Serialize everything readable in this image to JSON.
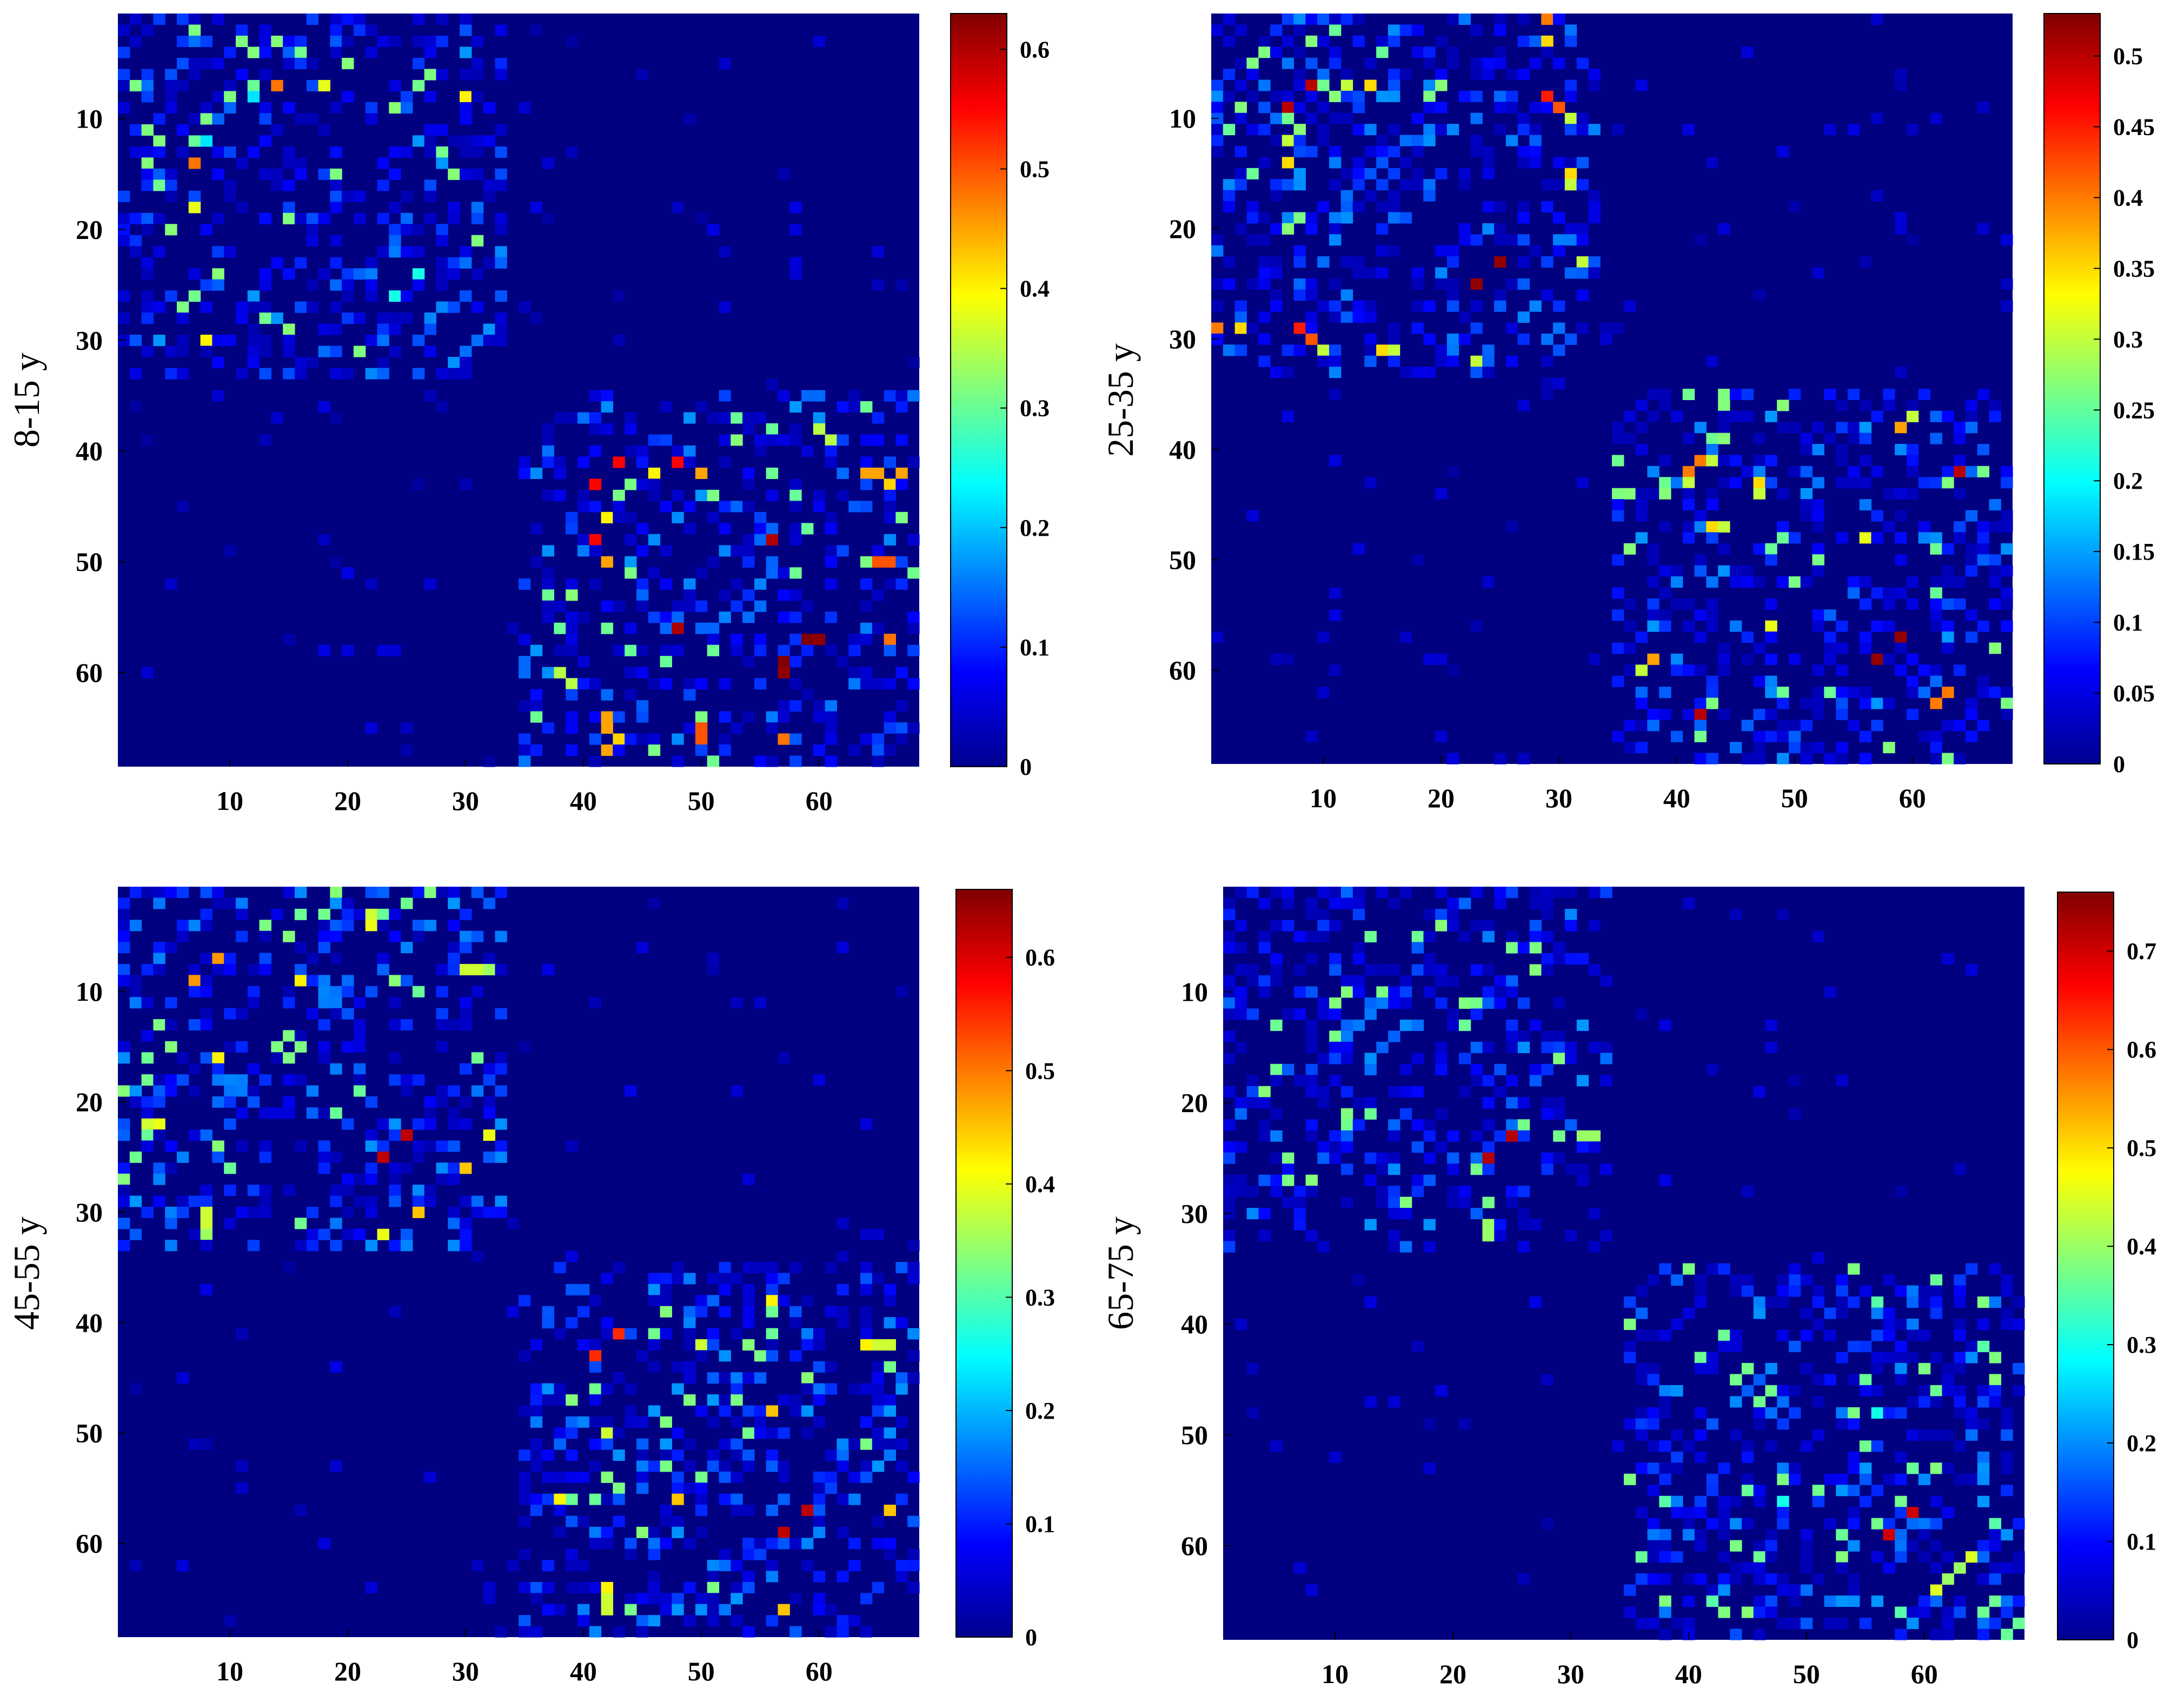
{
  "chart_data": [
    {
      "type": "heatmap",
      "ylabel": "8-15 y",
      "size": 68,
      "x_ticks": [
        10,
        20,
        30,
        40,
        50,
        60
      ],
      "y_ticks": [
        10,
        20,
        30,
        40,
        50,
        60
      ],
      "colormap": "jet",
      "clim": [
        0,
        0.63
      ],
      "colorbar_ticks": [
        "0",
        "0.1",
        "0.2",
        "0.3",
        "0.4",
        "0.5",
        "0.6"
      ],
      "seed": 11,
      "hot_cells": [
        [
          7,
          14,
          0.45
        ],
        [
          7,
          18,
          0.35
        ],
        [
          8,
          30,
          0.4
        ],
        [
          14,
          7,
          0.48
        ],
        [
          18,
          7,
          0.38
        ],
        [
          30,
          8,
          0.4
        ],
        [
          26,
          24,
          0.25
        ],
        [
          12,
          8,
          0.22
        ],
        [
          7,
          12,
          0.3
        ],
        [
          41,
          43,
          0.55
        ],
        [
          41,
          48,
          0.6
        ],
        [
          43,
          41,
          0.55
        ],
        [
          42,
          46,
          0.38
        ],
        [
          46,
          42,
          0.4
        ],
        [
          48,
          56,
          0.62
        ],
        [
          48,
          41,
          0.55
        ],
        [
          50,
          42,
          0.45
        ],
        [
          50,
          66,
          0.5
        ],
        [
          56,
          48,
          0.6
        ],
        [
          57,
          60,
          0.62
        ],
        [
          57,
          66,
          0.45
        ],
        [
          59,
          57,
          0.63
        ],
        [
          65,
          50,
          0.5
        ],
        [
          64,
          42,
          0.45
        ],
        [
          66,
          43,
          0.42
        ],
        [
          66,
          57,
          0.48
        ],
        [
          42,
          65,
          0.45
        ],
        [
          42,
          67,
          0.45
        ],
        [
          38,
          60,
          0.4
        ],
        [
          60,
          38,
          0.35
        ],
        [
          56,
          38,
          0.3
        ],
        [
          61,
          39,
          0.35
        ],
        [
          58,
          44,
          0.35
        ],
        [
          44,
          58,
          0.3
        ]
      ]
    },
    {
      "type": "heatmap",
      "ylabel": "25-35 y",
      "size": 68,
      "x_ticks": [
        10,
        20,
        30,
        40,
        50,
        60
      ],
      "y_ticks": [
        10,
        20,
        30,
        40,
        50,
        60
      ],
      "colormap": "jet",
      "clim": [
        0,
        0.53
      ],
      "colorbar_ticks": [
        "0",
        "0.05",
        "0.1",
        "0.15",
        "0.2",
        "0.25",
        "0.3",
        "0.35",
        "0.4",
        "0.45",
        "0.5"
      ],
      "seed": 23,
      "hot_cells": [
        [
          9,
          7,
          0.45
        ],
        [
          7,
          9,
          0.5
        ],
        [
          8,
          29,
          0.45
        ],
        [
          3,
          29,
          0.35
        ],
        [
          12,
          7,
          0.3
        ],
        [
          14,
          7,
          0.35
        ],
        [
          29,
          1,
          0.4
        ],
        [
          30,
          9,
          0.42
        ],
        [
          31,
          15,
          0.35
        ],
        [
          25,
          23,
          0.5
        ],
        [
          23,
          25,
          0.52
        ],
        [
          16,
          31,
          0.3
        ],
        [
          10,
          31,
          0.3
        ],
        [
          32,
          23,
          0.3
        ],
        [
          7,
          12,
          0.3
        ],
        [
          42,
          64,
          0.5
        ],
        [
          42,
          41,
          0.4
        ],
        [
          47,
          43,
          0.35
        ],
        [
          44,
          47,
          0.3
        ],
        [
          48,
          56,
          0.35
        ],
        [
          56,
          48,
          0.32
        ],
        [
          57,
          59,
          0.53
        ],
        [
          59,
          57,
          0.52
        ],
        [
          62,
          63,
          0.42
        ],
        [
          63,
          62,
          0.4
        ],
        [
          64,
          42,
          0.5
        ],
        [
          59,
          38,
          0.35
        ],
        [
          38,
          59,
          0.38
        ],
        [
          37,
          60,
          0.3
        ],
        [
          41,
          43,
          0.3
        ]
      ]
    },
    {
      "type": "heatmap",
      "ylabel": "45-55 y",
      "size": 68,
      "x_ticks": [
        10,
        20,
        30,
        40,
        50,
        60
      ],
      "y_ticks": [
        10,
        20,
        30,
        40,
        50,
        60
      ],
      "colormap": "jet",
      "clim": [
        0,
        0.66
      ],
      "colorbar_ticks": [
        "0",
        "0.1",
        "0.2",
        "0.3",
        "0.4",
        "0.5",
        "0.6"
      ],
      "seed": 37,
      "hot_cells": [
        [
          7,
          9,
          0.5
        ],
        [
          9,
          7,
          0.48
        ],
        [
          16,
          9,
          0.45
        ],
        [
          9,
          16,
          0.42
        ],
        [
          4,
          22,
          0.4
        ],
        [
          8,
          31,
          0.38
        ],
        [
          8,
          32,
          0.35
        ],
        [
          22,
          3,
          0.38
        ],
        [
          30,
          8,
          0.38
        ],
        [
          31,
          16,
          0.32
        ],
        [
          32,
          23,
          0.42
        ],
        [
          30,
          26,
          0.4
        ],
        [
          26,
          30,
          0.45
        ],
        [
          23,
          32,
          0.4
        ],
        [
          25,
          23,
          0.62
        ],
        [
          23,
          25,
          0.62
        ],
        [
          41,
          43,
          0.6
        ],
        [
          43,
          41,
          0.55
        ],
        [
          38,
          56,
          0.45
        ],
        [
          56,
          38,
          0.42
        ],
        [
          57,
          59,
          0.64
        ],
        [
          59,
          57,
          0.62
        ],
        [
          56,
          48,
          0.5
        ],
        [
          48,
          56,
          0.45
        ],
        [
          57,
          66,
          0.45
        ],
        [
          42,
          65,
          0.38
        ],
        [
          64,
          42,
          0.42
        ],
        [
          66,
          42,
          0.38
        ],
        [
          50,
          42,
          0.38
        ],
        [
          46,
          41,
          0.35
        ],
        [
          41,
          46,
          0.32
        ]
      ]
    },
    {
      "type": "heatmap",
      "ylabel": "65-75 y",
      "size": 68,
      "x_ticks": [
        10,
        20,
        30,
        40,
        50,
        60
      ],
      "y_ticks": [
        10,
        20,
        30,
        40,
        50,
        60
      ],
      "colormap": "jet",
      "clim": [
        0,
        0.76
      ],
      "colorbar_ticks": [
        "0",
        "0.1",
        "0.2",
        "0.3",
        "0.4",
        "0.5",
        "0.6",
        "0.7"
      ],
      "seed": 53,
      "hot_cells": [
        [
          25,
          23,
          0.7
        ],
        [
          23,
          25,
          0.72
        ],
        [
          32,
          23,
          0.4
        ],
        [
          23,
          31,
          0.4
        ],
        [
          57,
          59,
          0.72
        ],
        [
          59,
          57,
          0.7
        ],
        [
          64,
          61,
          0.5
        ],
        [
          61,
          64,
          0.45
        ],
        [
          56,
          38,
          0.4
        ],
        [
          38,
          56,
          0.35
        ],
        [
          42,
          65,
          0.35
        ],
        [
          63,
          62,
          0.4
        ],
        [
          58,
          66,
          0.35
        ],
        [
          48,
          56,
          0.3
        ]
      ]
    }
  ]
}
